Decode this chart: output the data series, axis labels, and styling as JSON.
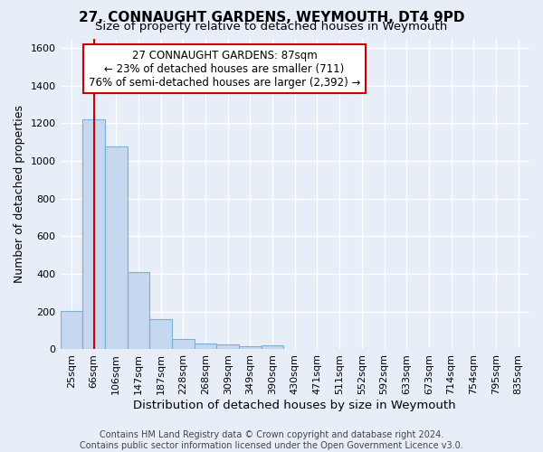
{
  "title": "27, CONNAUGHT GARDENS, WEYMOUTH, DT4 9PD",
  "subtitle": "Size of property relative to detached houses in Weymouth",
  "xlabel": "Distribution of detached houses by size in Weymouth",
  "ylabel": "Number of detached properties",
  "categories": [
    "25sqm",
    "66sqm",
    "106sqm",
    "147sqm",
    "187sqm",
    "228sqm",
    "268sqm",
    "309sqm",
    "349sqm",
    "390sqm",
    "430sqm",
    "471sqm",
    "511sqm",
    "552sqm",
    "592sqm",
    "633sqm",
    "673sqm",
    "714sqm",
    "754sqm",
    "795sqm",
    "835sqm"
  ],
  "bar_values": [
    205,
    1220,
    1075,
    410,
    160,
    55,
    30,
    25,
    15,
    20,
    0,
    0,
    0,
    0,
    0,
    0,
    0,
    0,
    0,
    0,
    0
  ],
  "bar_color": "#c5d8f0",
  "bar_edge_color": "#7bafd4",
  "property_line_color": "#cc0000",
  "annotation_text": "27 CONNAUGHT GARDENS: 87sqm\n← 23% of detached houses are smaller (711)\n76% of semi-detached houses are larger (2,392) →",
  "annotation_box_facecolor": "#ffffff",
  "annotation_box_edgecolor": "#cc0000",
  "ylim": [
    0,
    1650
  ],
  "yticks": [
    0,
    200,
    400,
    600,
    800,
    1000,
    1200,
    1400,
    1600
  ],
  "footer_text": "Contains HM Land Registry data © Crown copyright and database right 2024.\nContains public sector information licensed under the Open Government Licence v3.0.",
  "bg_color": "#e8eef8",
  "plot_bg_color": "#e8eef8",
  "grid_color": "#ffffff",
  "title_fontsize": 11,
  "subtitle_fontsize": 9.5,
  "ylabel_fontsize": 9,
  "xlabel_fontsize": 9.5,
  "tick_fontsize": 8,
  "annotation_fontsize": 8.5,
  "footer_fontsize": 7
}
